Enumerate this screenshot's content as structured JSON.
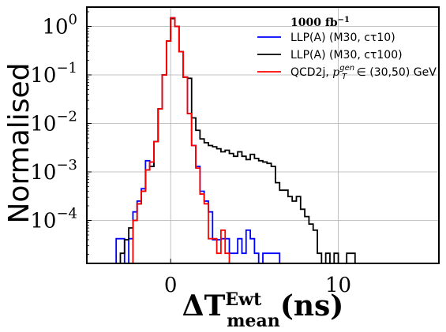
{
  "chart_data": {
    "type": "step-histogram",
    "title": "",
    "ylabel": "Normalised",
    "xlabel": {
      "base": "ΔT",
      "sup": "Ewt",
      "sub": "mean",
      "tail": "(ns)"
    },
    "yscale": "log",
    "xlim": [
      -5,
      16
    ],
    "ylim": [
      1.3e-05,
      2.5
    ],
    "grid": true,
    "legend": {
      "placement": "top-right",
      "title": "1000 fb",
      "title_sup": "−1"
    },
    "xticks": [
      {
        "value": 0,
        "label": "0"
      },
      {
        "value": 10,
        "label": "10"
      }
    ],
    "yticks": [
      {
        "value": 1,
        "label_base": "10",
        "label_exp": "0"
      },
      {
        "value": 0.1,
        "label_base": "10",
        "label_exp": "−1"
      },
      {
        "value": 0.01,
        "label_base": "10",
        "label_exp": "−2"
      },
      {
        "value": 0.001,
        "label_base": "10",
        "label_exp": "−3"
      },
      {
        "value": 0.0001,
        "label_base": "10",
        "label_exp": "−4"
      }
    ],
    "bin_width": 0.25,
    "series": [
      {
        "name": "LLP(A) (M30, cτ10)",
        "color": "#0000ff",
        "bins": [
          [
            -3.25,
            4.2e-05
          ],
          [
            -3.0,
            4.2e-05
          ],
          [
            -2.75,
            0
          ],
          [
            -2.5,
            4.2e-05
          ],
          [
            -2.25,
            0.00015
          ],
          [
            -2.0,
            0.00025
          ],
          [
            -1.75,
            0.00045
          ],
          [
            -1.5,
            0.0017
          ],
          [
            -1.25,
            0.0013
          ],
          [
            -1.0,
            0.0042
          ],
          [
            -0.75,
            0.02
          ],
          [
            -0.5,
            0.1
          ],
          [
            -0.25,
            0.5
          ],
          [
            0.0,
            1.5
          ],
          [
            0.25,
            1.0
          ],
          [
            0.5,
            0.3
          ],
          [
            0.75,
            0.09
          ],
          [
            1.0,
            0.016
          ],
          [
            1.25,
            0.0035
          ],
          [
            1.5,
            0.0013
          ],
          [
            1.75,
            0.0004
          ],
          [
            2.0,
            0.00025
          ],
          [
            2.25,
            0.00015
          ],
          [
            2.5,
            4e-05
          ],
          [
            2.75,
            4e-05
          ],
          [
            3.0,
            4.2e-05
          ],
          [
            3.25,
            4.2e-05
          ],
          [
            3.5,
            2.1e-05
          ],
          [
            3.75,
            2.1e-05
          ],
          [
            4.0,
            4.2e-05
          ],
          [
            4.25,
            2.1e-05
          ],
          [
            4.5,
            6.3e-05
          ],
          [
            4.75,
            4.2e-05
          ],
          [
            5.0,
            2.1e-05
          ],
          [
            5.25,
            0.0
          ],
          [
            5.5,
            2.1e-05
          ],
          [
            5.75,
            2.1e-05
          ],
          [
            6.0,
            2.1e-05
          ],
          [
            6.25,
            2.1e-05
          ]
        ]
      },
      {
        "name": "LLP(A) (M30, cτ100)",
        "color": "#000000",
        "bins": [
          [
            -3.25,
            0.0
          ],
          [
            -3.0,
            2.1e-05
          ],
          [
            -2.75,
            4e-05
          ],
          [
            -2.5,
            7e-05
          ],
          [
            -2.25,
            0.0001
          ],
          [
            -2.0,
            0.00022
          ],
          [
            -1.75,
            0.0004
          ],
          [
            -1.5,
            0.0011
          ],
          [
            -1.25,
            0.0013
          ],
          [
            -1.0,
            0.0042
          ],
          [
            -0.75,
            0.02
          ],
          [
            -0.5,
            0.1
          ],
          [
            -0.25,
            0.5
          ],
          [
            0.0,
            1.45
          ],
          [
            0.25,
            1.0
          ],
          [
            0.5,
            0.3
          ],
          [
            0.75,
            0.09
          ],
          [
            1.0,
            0.085
          ],
          [
            1.25,
            0.013
          ],
          [
            1.5,
            0.0072
          ],
          [
            1.75,
            0.0048
          ],
          [
            2.0,
            0.004
          ],
          [
            2.25,
            0.0035
          ],
          [
            2.5,
            0.0033
          ],
          [
            2.75,
            0.003
          ],
          [
            3.0,
            0.0026
          ],
          [
            3.25,
            0.0028
          ],
          [
            3.5,
            0.0024
          ],
          [
            3.75,
            0.0021
          ],
          [
            4.0,
            0.0026
          ],
          [
            4.25,
            0.0021
          ],
          [
            4.5,
            0.0018
          ],
          [
            4.75,
            0.0023
          ],
          [
            5.0,
            0.0019
          ],
          [
            5.25,
            0.0017
          ],
          [
            5.5,
            0.0016
          ],
          [
            5.75,
            0.0015
          ],
          [
            6.0,
            0.0013
          ],
          [
            6.25,
            0.0006
          ],
          [
            6.5,
            0.00042
          ],
          [
            6.75,
            0.00042
          ],
          [
            7.0,
            0.00031
          ],
          [
            7.25,
            0.00025
          ],
          [
            7.5,
            0.00031
          ],
          [
            7.75,
            0.00017
          ],
          [
            8.0,
            0.00012
          ],
          [
            8.25,
            8.4e-05
          ],
          [
            8.5,
            6.3e-05
          ],
          [
            8.75,
            2.1e-05
          ],
          [
            9.0,
            0.0
          ],
          [
            9.25,
            2.1e-05
          ],
          [
            9.5,
            0.0
          ],
          [
            9.75,
            2.1e-05
          ],
          [
            10.0,
            0.0
          ],
          [
            10.25,
            0.0
          ],
          [
            10.5,
            2.1e-05
          ],
          [
            10.75,
            2.1e-05
          ]
        ]
      },
      {
        "name": "QCD2j, ",
        "name_math": "p",
        "name_sub": "T",
        "name_sup": "gen",
        "name_tail": " ∈ (30,50) GeV",
        "color": "#ff0000",
        "bins": [
          [
            -2.25,
            0.0001
          ],
          [
            -2.0,
            0.00022
          ],
          [
            -1.75,
            0.0004
          ],
          [
            -1.5,
            0.0011
          ],
          [
            -1.25,
            0.0016
          ],
          [
            -1.0,
            0.0042
          ],
          [
            -0.75,
            0.02
          ],
          [
            -0.5,
            0.1
          ],
          [
            -0.25,
            0.5
          ],
          [
            0.0,
            1.5
          ],
          [
            0.25,
            1.0
          ],
          [
            0.5,
            0.3
          ],
          [
            0.75,
            0.09
          ],
          [
            1.0,
            0.016
          ],
          [
            1.25,
            0.0035
          ],
          [
            1.5,
            0.0012
          ],
          [
            1.75,
            0.00035
          ],
          [
            2.0,
            0.00022
          ],
          [
            2.25,
            4.2e-05
          ],
          [
            2.5,
            4.2e-05
          ],
          [
            2.75,
            2.1e-05
          ],
          [
            3.0,
            6.3e-05
          ],
          [
            3.25,
            2.1e-05
          ]
        ]
      }
    ]
  }
}
